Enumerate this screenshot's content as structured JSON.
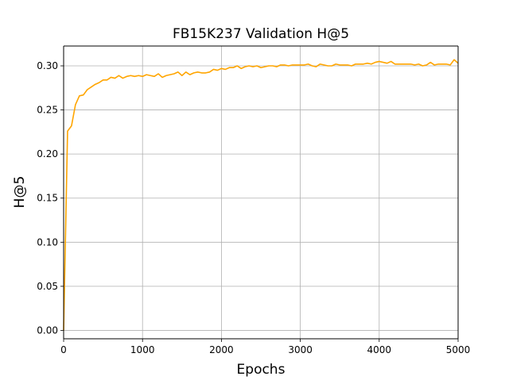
{
  "chart_data": {
    "type": "line",
    "title": "FB15K237 Validation H@5",
    "xlabel": "Epochs",
    "ylabel": "H@5",
    "xlim": [
      0,
      5000
    ],
    "ylim": [
      -0.0095,
      0.3225
    ],
    "xticks": [
      0,
      1000,
      2000,
      3000,
      4000,
      5000
    ],
    "xtick_labels": [
      "0",
      "1000",
      "2000",
      "3000",
      "4000",
      "5000"
    ],
    "yticks": [
      0.0,
      0.05,
      0.1,
      0.15,
      0.2,
      0.25,
      0.3
    ],
    "ytick_labels": [
      "0.00",
      "0.05",
      "0.10",
      "0.15",
      "0.20",
      "0.25",
      "0.30"
    ],
    "grid": true,
    "legend": false,
    "colors": {
      "line": "#FFA500",
      "grid": "#b0b0b0",
      "axes": "#000000"
    },
    "series": [
      {
        "x": [
          0,
          50,
          100,
          150,
          200,
          250,
          300,
          350,
          400,
          450,
          500,
          550,
          600,
          650,
          700,
          750,
          800,
          850,
          900,
          950,
          1000,
          1050,
          1100,
          1150,
          1200,
          1250,
          1300,
          1350,
          1400,
          1450,
          1500,
          1550,
          1600,
          1650,
          1700,
          1750,
          1800,
          1850,
          1900,
          1950,
          2000,
          2050,
          2100,
          2150,
          2200,
          2250,
          2300,
          2350,
          2400,
          2450,
          2500,
          2550,
          2600,
          2650,
          2700,
          2750,
          2800,
          2850,
          2900,
          2950,
          3000,
          3050,
          3100,
          3150,
          3200,
          3250,
          3300,
          3350,
          3400,
          3450,
          3500,
          3550,
          3600,
          3650,
          3700,
          3750,
          3800,
          3850,
          3900,
          3950,
          4000,
          4050,
          4100,
          4150,
          4200,
          4250,
          4300,
          4350,
          4400,
          4450,
          4500,
          4550,
          4600,
          4650,
          4700,
          4750,
          4800,
          4850,
          4900,
          4950,
          5000
        ],
        "y": [
          0.0,
          0.226,
          0.232,
          0.256,
          0.266,
          0.267,
          0.273,
          0.276,
          0.279,
          0.281,
          0.284,
          0.284,
          0.287,
          0.286,
          0.289,
          0.286,
          0.288,
          0.289,
          0.288,
          0.289,
          0.288,
          0.29,
          0.289,
          0.288,
          0.291,
          0.287,
          0.289,
          0.29,
          0.291,
          0.293,
          0.289,
          0.293,
          0.29,
          0.292,
          0.293,
          0.292,
          0.292,
          0.293,
          0.296,
          0.295,
          0.297,
          0.296,
          0.298,
          0.298,
          0.3,
          0.297,
          0.299,
          0.3,
          0.299,
          0.3,
          0.298,
          0.299,
          0.3,
          0.3,
          0.299,
          0.301,
          0.301,
          0.3,
          0.301,
          0.301,
          0.301,
          0.301,
          0.302,
          0.3,
          0.299,
          0.302,
          0.301,
          0.3,
          0.3,
          0.302,
          0.301,
          0.301,
          0.301,
          0.3,
          0.302,
          0.302,
          0.302,
          0.303,
          0.302,
          0.304,
          0.305,
          0.304,
          0.303,
          0.305,
          0.302,
          0.302,
          0.302,
          0.302,
          0.302,
          0.301,
          0.302,
          0.3,
          0.301,
          0.304,
          0.301,
          0.302,
          0.302,
          0.302,
          0.301,
          0.307,
          0.303
        ]
      }
    ]
  }
}
